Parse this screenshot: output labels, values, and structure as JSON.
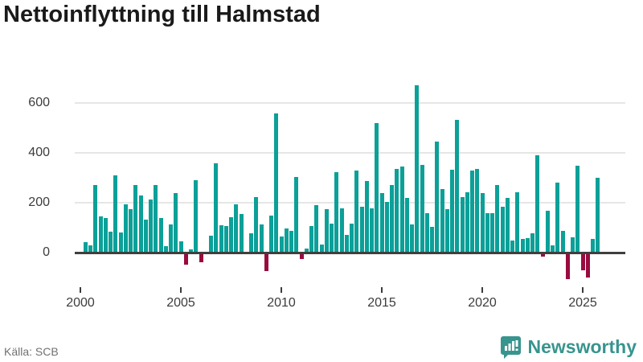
{
  "header": {
    "title": "Nettoinflyttning till Halmstad"
  },
  "footer": {
    "source": "Källa: SCB",
    "brand": "Newsworthy"
  },
  "chart_data": {
    "type": "bar",
    "title": "Nettoinflyttning till Halmstad",
    "xlabel": "",
    "ylabel": "",
    "frequency": "quarterly",
    "start_year": 2000,
    "start_quarter": 1,
    "values": [
      42,
      28,
      270,
      146,
      140,
      85,
      310,
      80,
      193,
      175,
      270,
      229,
      132,
      213,
      271,
      139,
      26,
      112,
      238,
      46,
      -45,
      14,
      289,
      -35,
      0,
      68,
      359,
      111,
      108,
      141,
      194,
      155,
      0,
      76,
      224,
      112,
      -70,
      148,
      559,
      64,
      98,
      86,
      303,
      -21,
      15,
      108,
      191,
      33,
      175,
      117,
      322,
      179,
      71,
      115,
      328,
      183,
      288,
      176,
      520,
      239,
      204,
      271,
      337,
      344,
      218,
      114,
      670,
      353,
      159,
      104,
      444,
      255,
      173,
      332,
      532,
      222,
      241,
      329,
      336,
      238,
      157,
      157,
      272,
      185,
      218,
      47,
      243,
      56,
      57,
      78,
      390,
      -12,
      169,
      30,
      281,
      88,
      -100,
      62,
      349,
      -65,
      -95,
      54,
      299
    ],
    "y_ticks": [
      0,
      200,
      400,
      600
    ],
    "x_tick_years": [
      2000,
      2005,
      2010,
      2015,
      2020,
      2025
    ],
    "ylim": [
      -130,
      700
    ],
    "grid": "horizontal",
    "legend": "none",
    "positive_color": "#0ba098",
    "negative_color": "#990b3f",
    "axis_line_color": "#3f3f3f",
    "grid_color": "#e6e6e6"
  }
}
